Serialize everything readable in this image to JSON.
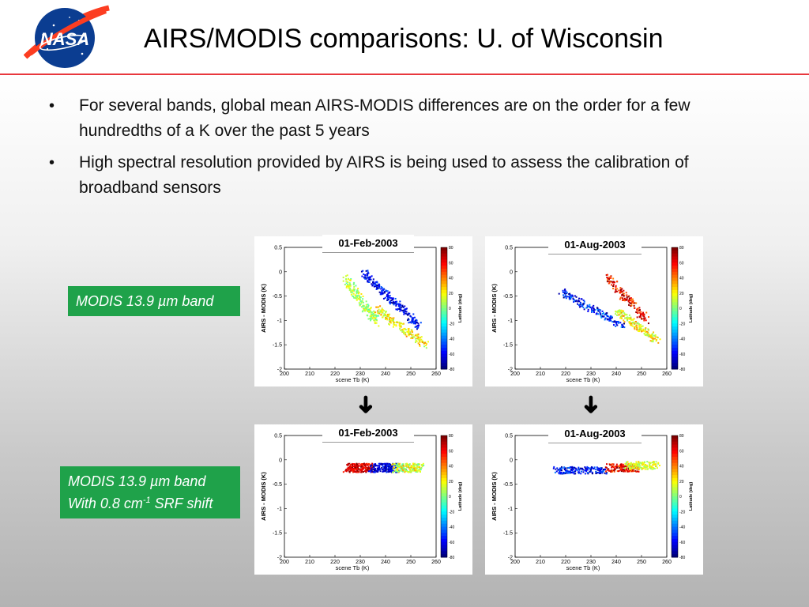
{
  "slide": {
    "title": "AIRS/MODIS comparisons: U. of Wisconsin",
    "logo_text": "NASA",
    "bullet_glyph": "•",
    "bullets": [
      "For several bands, global mean AIRS-MODIS differences are on the order for a few hundredths of a K over the past 5 years",
      "High spectral resolution provided by AIRS is being used to assess the calibration of broadband sensors"
    ]
  },
  "labels": {
    "band1": "MODIS 13.9 µm band",
    "band2_line1": "MODIS 13.9 µm band",
    "band2_line2_prefix": "With 0.8 cm",
    "band2_sup": "-1",
    "band2_line2_suffix": " SRF shift"
  },
  "arrow_glyph": "➜",
  "colors": {
    "rule": "#e8383d",
    "label_bg": "#1fa24a",
    "nasa_blue": "#0b3d91",
    "nasa_red": "#fc3d21"
  },
  "chart_data": [
    {
      "type": "scatter",
      "date": "01-Feb-2003",
      "xlabel": "scene Tb (K)",
      "ylabel": "AIRS - MODIS (K)",
      "colorbar_label": "Latitude (deg)",
      "xlim": [
        200,
        260
      ],
      "ylim": [
        -2,
        0.5
      ],
      "xticks": [
        200,
        210,
        220,
        230,
        240,
        250,
        260
      ],
      "yticks": [
        {
          "v": 0.5,
          "t": "0.5"
        },
        {
          "v": 0,
          "t": "0"
        },
        {
          "v": -0.5,
          "t": "-0.5"
        },
        {
          "v": -1,
          "t": "-1"
        },
        {
          "v": -1.5,
          "t": "-1.5"
        },
        {
          "v": -2,
          "t": "-2"
        }
      ],
      "cticks": [
        80,
        60,
        40,
        20,
        0,
        -20,
        -40,
        -60,
        -80
      ],
      "clusters": [
        {
          "x": [
            224,
            236
          ],
          "y": [
            -0.15,
            -1.0
          ],
          "spread": 0.22,
          "lat": [
            -10,
            25
          ],
          "n": 190
        },
        {
          "x": [
            231,
            253
          ],
          "y": [
            0.0,
            -1.1
          ],
          "spread": 0.16,
          "lat": [
            -80,
            -45
          ],
          "n": 230
        },
        {
          "x": [
            236,
            256
          ],
          "y": [
            -0.75,
            -1.5
          ],
          "spread": 0.16,
          "lat": [
            0,
            40
          ],
          "n": 180
        }
      ]
    },
    {
      "type": "scatter",
      "date": "01-Aug-2003",
      "xlabel": "scene Tb (K)",
      "ylabel": "AIRS - MODIS (K)",
      "colorbar_label": "Latitude (deg)",
      "xlim": [
        200,
        260
      ],
      "ylim": [
        -2,
        0.5
      ],
      "xticks": [
        200,
        210,
        220,
        230,
        240,
        250,
        260
      ],
      "yticks": [
        {
          "v": 0.5,
          "t": "0.5"
        },
        {
          "v": 0,
          "t": "0"
        },
        {
          "v": -0.5,
          "t": "-0.5"
        },
        {
          "v": -1,
          "t": "-1"
        },
        {
          "v": -1.5,
          "t": "-1.5"
        },
        {
          "v": -2,
          "t": "-2"
        }
      ],
      "cticks": [
        80,
        60,
        40,
        20,
        0,
        -20,
        -40,
        -60,
        -80
      ],
      "clusters": [
        {
          "x": [
            218,
            242
          ],
          "y": [
            -0.4,
            -1.1
          ],
          "spread": 0.14,
          "lat": [
            -80,
            -35
          ],
          "n": 170
        },
        {
          "x": [
            236,
            252
          ],
          "y": [
            -0.1,
            -1.0
          ],
          "spread": 0.18,
          "lat": [
            40,
            80
          ],
          "n": 150
        },
        {
          "x": [
            240,
            256
          ],
          "y": [
            -0.8,
            -1.4
          ],
          "spread": 0.14,
          "lat": [
            0,
            40
          ],
          "n": 170
        }
      ]
    },
    {
      "type": "scatter",
      "date": "01-Feb-2003",
      "xlabel": "scene Tb (K)",
      "ylabel": "AIRS - MODIS (K)",
      "colorbar_label": "Latitude (deg)",
      "xlim": [
        200,
        260
      ],
      "ylim": [
        -2,
        0.5
      ],
      "xticks": [
        200,
        210,
        220,
        230,
        240,
        250,
        260
      ],
      "yticks": [
        {
          "v": 0.5,
          "t": "0.5"
        },
        {
          "v": 0,
          "t": "0"
        },
        {
          "v": -0.5,
          "t": "-0.5"
        },
        {
          "v": -1,
          "t": "-1"
        },
        {
          "v": -1.5,
          "t": "-1.5"
        },
        {
          "v": -2,
          "t": "-2"
        }
      ],
      "cticks": [
        80,
        60,
        40,
        20,
        0,
        -20,
        -40,
        -60,
        -80
      ],
      "clusters": [
        {
          "x": [
            224,
            234
          ],
          "y": [
            -0.15,
            -0.15
          ],
          "spread": 0.18,
          "lat": [
            50,
            80
          ],
          "n": 200
        },
        {
          "x": [
            234,
            244
          ],
          "y": [
            -0.15,
            -0.15
          ],
          "spread": 0.18,
          "lat": [
            -80,
            -50
          ],
          "n": 180
        },
        {
          "x": [
            243,
            254
          ],
          "y": [
            -0.15,
            -0.15
          ],
          "spread": 0.18,
          "lat": [
            -10,
            40
          ],
          "n": 180
        }
      ]
    },
    {
      "type": "scatter",
      "date": "01-Aug-2003",
      "xlabel": "scene Tb (K)",
      "ylabel": "AIRS - MODIS (K)",
      "colorbar_label": "Latitude (deg)",
      "xlim": [
        200,
        260
      ],
      "ylim": [
        -2,
        0.5
      ],
      "xticks": [
        200,
        210,
        220,
        230,
        240,
        250,
        260
      ],
      "yticks": [
        {
          "v": 0.5,
          "t": "0.5"
        },
        {
          "v": 0,
          "t": "0"
        },
        {
          "v": -0.5,
          "t": "-0.5"
        },
        {
          "v": -1,
          "t": "-1"
        },
        {
          "v": -1.5,
          "t": "-1.5"
        },
        {
          "v": -2,
          "t": "-2"
        }
      ],
      "cticks": [
        80,
        60,
        40,
        20,
        0,
        -20,
        -40,
        -60,
        -80
      ],
      "clusters": [
        {
          "x": [
            216,
            236
          ],
          "y": [
            -0.2,
            -0.2
          ],
          "spread": 0.14,
          "lat": [
            -80,
            -40
          ],
          "n": 180
        },
        {
          "x": [
            236,
            248
          ],
          "y": [
            -0.15,
            -0.15
          ],
          "spread": 0.16,
          "lat": [
            40,
            80
          ],
          "n": 150
        },
        {
          "x": [
            244,
            256
          ],
          "y": [
            -0.1,
            -0.1
          ],
          "spread": 0.16,
          "lat": [
            0,
            30
          ],
          "n": 140
        }
      ]
    }
  ]
}
